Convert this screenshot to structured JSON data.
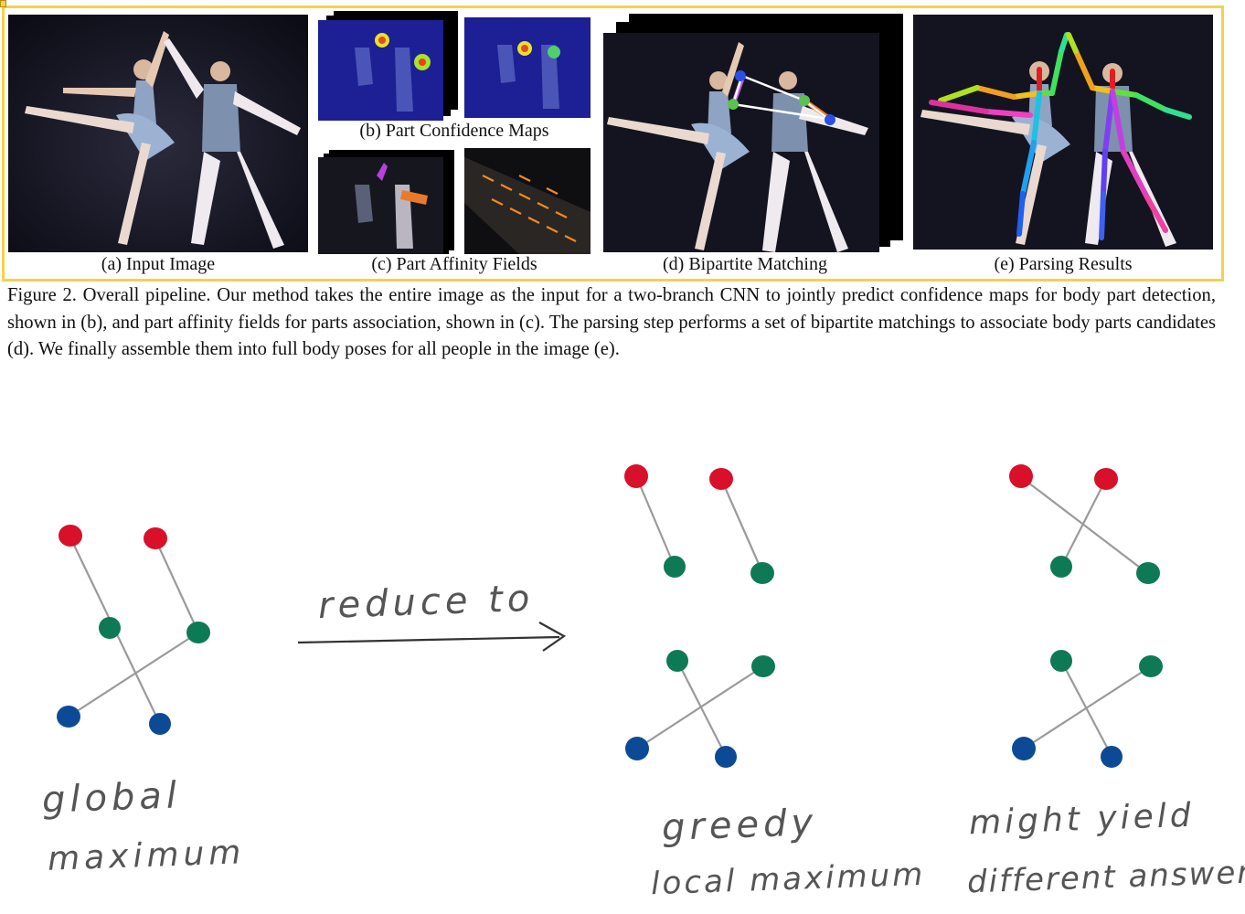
{
  "figure": {
    "panels": [
      {
        "label": "(a) Input Image"
      },
      {
        "label": "(b) Part Confidence Maps"
      },
      {
        "label": "(c) Part Affinity Fields"
      },
      {
        "label": "(d) Bipartite Matching"
      },
      {
        "label": "(e) Parsing Results"
      }
    ],
    "caption": "Figure 2. Overall pipeline. Our method takes the entire image as the input for a two-branch CNN to jointly predict confidence maps for body part detection, shown in (b), and part affinity fields for parts association, shown in (c). The parsing step performs a set of bipartite matchings to associate body parts candidates (d). We finally assemble them into full body poses for all people in the image (e)."
  },
  "notes": {
    "arrow_label": "reduce to",
    "global_label_line1": "global",
    "global_label_line2": "maximum",
    "greedy_label_line1": "greedy",
    "greedy_label_line2": "local maximum",
    "different_label_line1": "might yield",
    "different_label_line2": "different answer"
  },
  "colors": {
    "highlight_frame": "#f5d14a",
    "node_red": "#d8102a",
    "node_green": "#0e7a55",
    "node_blue": "#0d4a96",
    "edge_gray": "#9a9a9a",
    "ink": "#555555"
  }
}
